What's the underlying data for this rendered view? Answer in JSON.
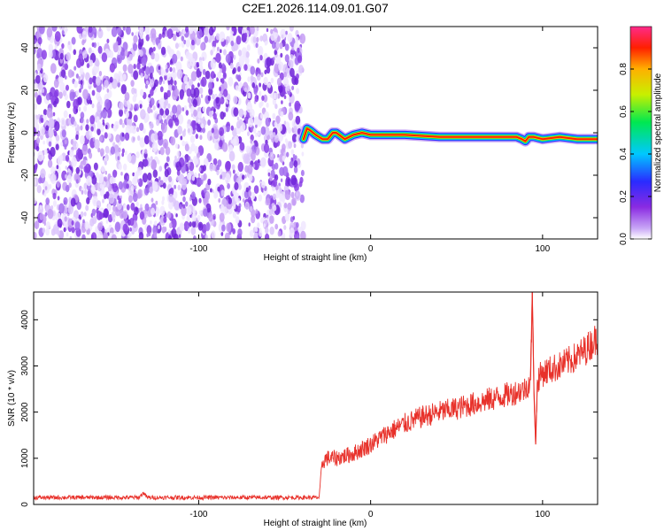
{
  "title": "C2E1.2026.114.09.01.G07",
  "chart_data": [
    {
      "type": "heatmap",
      "xlabel": "Height of straight line (km)",
      "ylabel": "Frequency (Hz)",
      "xlim": [
        -196,
        132
      ],
      "ylim": [
        -50,
        50
      ],
      "xticks": [
        "-100",
        "0",
        "100"
      ],
      "xtick_values": [
        -100,
        0,
        100
      ],
      "yticks": [
        "-40",
        "-20",
        "0",
        "20",
        "40"
      ],
      "ytick_values": [
        -40,
        -20,
        0,
        20,
        40
      ],
      "noise_region_x": [
        -196,
        -39
      ],
      "ridge": {
        "x": [
          -39,
          -37,
          -35,
          -32,
          -30,
          -28,
          -25,
          -22,
          -20,
          -15,
          -10,
          -5,
          0,
          10,
          20,
          40,
          60,
          80,
          85,
          88,
          90,
          92,
          95,
          100,
          110,
          120,
          132
        ],
        "y": [
          -3,
          2,
          1,
          -1,
          -2,
          -3,
          -3,
          0,
          0,
          -3,
          -1,
          0,
          -1,
          -1,
          -1,
          -2,
          -2,
          -2,
          -2,
          -3,
          -4,
          -2,
          -2,
          -3,
          -2,
          -3,
          -3
        ]
      },
      "colorbar": {
        "label": "Normalized spectral amplitude",
        "ticks": [
          "0.0",
          "0.2",
          "0.4",
          "0.6",
          "0.8"
        ],
        "tick_values": [
          0.0,
          0.2,
          0.4,
          0.6,
          0.8
        ],
        "range": [
          0,
          1
        ]
      }
    },
    {
      "type": "line",
      "xlabel": "Height of straight line (km)",
      "ylabel": "SNR (10 * v/v)",
      "xlim": [
        -196,
        132
      ],
      "ylim": [
        0,
        4600
      ],
      "xticks": [
        "-100",
        "0",
        "100"
      ],
      "xtick_values": [
        -100,
        0,
        100
      ],
      "yticks": [
        "0",
        "1000",
        "2000",
        "3000",
        "4000"
      ],
      "ytick_values": [
        0,
        1000,
        2000,
        3000,
        4000
      ],
      "series": [
        {
          "color": "#e8312a",
          "x": [
            -196,
            -160,
            -135,
            -132,
            -130,
            -100,
            -60,
            -30,
            -28,
            -26,
            -20,
            -10,
            0,
            10,
            20,
            30,
            40,
            50,
            60,
            70,
            80,
            90,
            93,
            94,
            95,
            96,
            97,
            100,
            110,
            120,
            125,
            130,
            132
          ],
          "y": [
            150,
            150,
            150,
            250,
            150,
            150,
            150,
            150,
            900,
            1000,
            1000,
            1100,
            1300,
            1550,
            1750,
            1900,
            2000,
            2080,
            2180,
            2280,
            2380,
            2500,
            2700,
            4600,
            2500,
            1300,
            2700,
            2850,
            3000,
            3200,
            3350,
            3550,
            3600
          ]
        }
      ]
    }
  ]
}
